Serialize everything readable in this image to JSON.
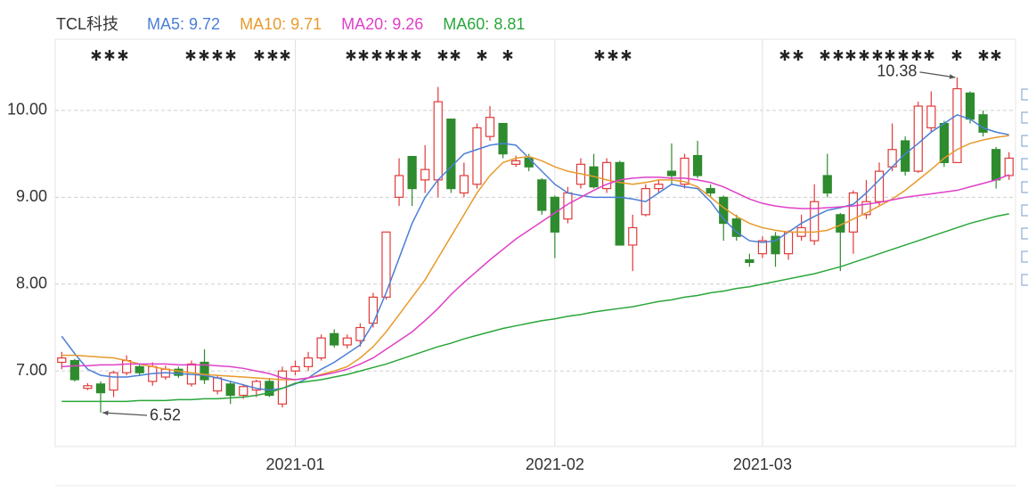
{
  "chart_data": {
    "type": "candlestick",
    "title": "TCL科技",
    "categories": [
      null,
      null,
      null,
      null,
      null,
      null,
      null,
      null,
      null,
      null,
      null,
      null,
      null,
      null,
      null,
      null,
      null,
      null,
      "2021-01",
      null,
      null,
      null,
      null,
      null,
      null,
      null,
      null,
      null,
      null,
      null,
      null,
      null,
      null,
      null,
      null,
      null,
      null,
      null,
      "2021-02",
      null,
      null,
      null,
      null,
      null,
      null,
      null,
      null,
      null,
      null,
      null,
      null,
      null,
      null,
      null,
      "2021-03",
      null,
      null,
      null,
      null,
      null,
      null,
      null,
      null,
      null,
      null,
      null,
      null,
      null,
      null,
      null,
      null,
      null,
      null,
      null
    ],
    "ohlc": {
      "open": [
        7.1,
        7.12,
        6.8,
        6.85,
        6.78,
        6.98,
        7.05,
        6.88,
        6.93,
        7.02,
        6.85,
        7.1,
        6.77,
        6.85,
        6.72,
        6.78,
        6.88,
        6.62,
        7.0,
        7.05,
        7.15,
        7.43,
        7.3,
        7.35,
        7.55,
        7.85,
        9.0,
        9.47,
        9.2,
        9.2,
        9.9,
        9.05,
        9.15,
        9.7,
        9.85,
        9.38,
        9.45,
        9.2,
        9.0,
        8.75,
        9.15,
        9.35,
        9.1,
        9.4,
        8.45,
        8.8,
        9.1,
        9.3,
        9.15,
        9.48,
        9.1,
        9.0,
        8.75,
        8.28,
        8.35,
        8.55,
        8.35,
        8.55,
        8.5,
        9.25,
        8.8,
        8.6,
        8.8,
        8.95,
        9.35,
        9.65,
        9.3,
        9.8,
        9.85,
        9.4,
        10.2,
        9.95,
        9.55,
        9.25
      ],
      "high": [
        7.22,
        7.14,
        6.86,
        6.88,
        7.0,
        7.18,
        7.08,
        7.1,
        7.06,
        7.05,
        7.12,
        7.25,
        6.95,
        6.88,
        6.85,
        6.9,
        6.92,
        7.05,
        7.12,
        7.22,
        7.42,
        7.48,
        7.42,
        7.55,
        7.9,
        8.6,
        9.45,
        9.47,
        9.6,
        10.27,
        9.9,
        9.4,
        9.85,
        10.05,
        9.85,
        9.48,
        9.5,
        9.22,
        9.02,
        9.12,
        9.45,
        9.5,
        9.45,
        9.42,
        8.8,
        9.15,
        9.2,
        9.62,
        9.5,
        9.65,
        9.15,
        9.02,
        8.8,
        8.35,
        8.55,
        8.6,
        8.62,
        8.8,
        9.15,
        9.5,
        8.82,
        9.08,
        9.2,
        9.4,
        9.85,
        9.7,
        10.1,
        10.22,
        9.88,
        10.38,
        10.22,
        10.0,
        9.58,
        9.52
      ],
      "low": [
        7.02,
        6.88,
        6.78,
        6.52,
        6.7,
        6.95,
        6.94,
        6.83,
        6.9,
        6.92,
        6.82,
        6.85,
        6.73,
        6.62,
        6.68,
        6.7,
        6.7,
        6.58,
        6.95,
        7.0,
        7.12,
        7.27,
        7.26,
        7.28,
        7.5,
        7.82,
        8.9,
        8.9,
        9.05,
        9.0,
        9.05,
        9.0,
        9.1,
        9.65,
        9.45,
        9.35,
        9.3,
        8.8,
        8.3,
        8.7,
        9.1,
        9.1,
        9.05,
        8.45,
        8.15,
        8.78,
        9.05,
        9.15,
        9.1,
        9.22,
        9.0,
        8.5,
        8.5,
        8.2,
        8.3,
        8.2,
        8.28,
        8.5,
        8.45,
        9.0,
        8.15,
        8.35,
        8.75,
        8.9,
        9.3,
        9.25,
        9.28,
        9.75,
        9.35,
        9.4,
        9.85,
        9.7,
        9.1,
        9.2
      ],
      "close": [
        7.15,
        6.9,
        6.83,
        6.75,
        6.98,
        7.12,
        6.98,
        7.05,
        7.02,
        6.95,
        7.08,
        6.9,
        6.92,
        6.72,
        6.82,
        6.88,
        6.72,
        7.0,
        7.05,
        7.15,
        7.38,
        7.3,
        7.38,
        7.5,
        7.85,
        8.6,
        9.25,
        9.1,
        9.32,
        10.1,
        9.1,
        9.25,
        9.8,
        9.92,
        9.5,
        9.42,
        9.35,
        8.85,
        8.6,
        9.05,
        9.38,
        9.12,
        9.4,
        8.45,
        8.65,
        9.1,
        9.15,
        9.25,
        9.45,
        9.25,
        9.05,
        8.7,
        8.55,
        8.25,
        8.5,
        8.35,
        8.6,
        8.65,
        8.95,
        9.05,
        8.6,
        9.05,
        8.95,
        9.3,
        9.55,
        9.3,
        10.05,
        10.05,
        9.4,
        10.25,
        9.9,
        9.75,
        9.2,
        9.45
      ]
    },
    "up_color": "#e03a3a",
    "down_color": "#2e8b2e",
    "series": [
      {
        "name": "MA5",
        "color": "#4a7fd6",
        "values": [
          7.4,
          7.2,
          7.02,
          6.95,
          6.93,
          6.93,
          6.95,
          6.97,
          6.98,
          6.97,
          6.96,
          6.95,
          6.92,
          6.88,
          6.84,
          6.8,
          6.78,
          6.8,
          6.85,
          6.92,
          7.02,
          7.1,
          7.2,
          7.3,
          7.55,
          7.9,
          8.3,
          8.7,
          9.0,
          9.2,
          9.35,
          9.5,
          9.55,
          9.6,
          9.62,
          9.6,
          9.45,
          9.3,
          9.15,
          9.05,
          9.02,
          9.0,
          9.0,
          9.0,
          8.98,
          8.95,
          9.05,
          9.15,
          9.12,
          9.1,
          8.95,
          8.75,
          8.6,
          8.5,
          8.48,
          8.5,
          8.6,
          8.7,
          8.78,
          8.85,
          8.88,
          8.92,
          9.05,
          9.2,
          9.35,
          9.5,
          9.62,
          9.75,
          9.85,
          9.95,
          9.9,
          9.8,
          9.75,
          9.72
        ]
      },
      {
        "name": "MA10",
        "color": "#e89a2c",
        "values": [
          7.18,
          7.18,
          7.17,
          7.16,
          7.15,
          7.12,
          7.08,
          7.05,
          7.02,
          7.0,
          6.98,
          6.96,
          6.95,
          6.94,
          6.93,
          6.92,
          6.91,
          6.9,
          6.9,
          6.92,
          6.96,
          7.0,
          7.05,
          7.15,
          7.28,
          7.45,
          7.65,
          7.85,
          8.05,
          8.3,
          8.55,
          8.8,
          9.05,
          9.25,
          9.4,
          9.45,
          9.47,
          9.42,
          9.35,
          9.3,
          9.27,
          9.24,
          9.2,
          9.17,
          9.15,
          9.17,
          9.2,
          9.2,
          9.18,
          9.12,
          9.0,
          8.88,
          8.78,
          8.7,
          8.65,
          8.62,
          8.6,
          8.6,
          8.6,
          8.62,
          8.68,
          8.75,
          8.82,
          8.9,
          8.98,
          9.08,
          9.2,
          9.32,
          9.45,
          9.55,
          9.62,
          9.66,
          9.69,
          9.71
        ]
      },
      {
        "name": "MA20",
        "color": "#e040c8",
        "values": [
          7.05,
          7.06,
          7.06,
          7.07,
          7.07,
          7.08,
          7.08,
          7.08,
          7.08,
          7.07,
          7.07,
          7.07,
          7.06,
          7.05,
          7.03,
          7.0,
          6.97,
          6.92,
          6.9,
          6.92,
          6.95,
          6.98,
          7.02,
          7.08,
          7.15,
          7.25,
          7.35,
          7.45,
          7.58,
          7.72,
          7.88,
          8.02,
          8.15,
          8.28,
          8.4,
          8.52,
          8.62,
          8.72,
          8.82,
          8.92,
          9.0,
          9.08,
          9.15,
          9.2,
          9.22,
          9.23,
          9.23,
          9.22,
          9.22,
          9.2,
          9.17,
          9.12,
          9.05,
          8.98,
          8.93,
          8.9,
          8.88,
          8.87,
          8.87,
          8.88,
          8.89,
          8.9,
          8.92,
          8.94,
          8.97,
          9.0,
          9.02,
          9.04,
          9.06,
          9.08,
          9.12,
          9.16,
          9.2,
          9.26
        ]
      },
      {
        "name": "MA60",
        "color": "#2aa63a",
        "values": [
          6.65,
          6.65,
          6.65,
          6.65,
          6.65,
          6.65,
          6.66,
          6.66,
          6.66,
          6.67,
          6.67,
          6.68,
          6.68,
          6.69,
          6.7,
          6.72,
          6.75,
          6.8,
          6.86,
          6.88,
          6.9,
          6.93,
          6.96,
          7.0,
          7.04,
          7.08,
          7.13,
          7.18,
          7.23,
          7.28,
          7.32,
          7.37,
          7.41,
          7.45,
          7.49,
          7.52,
          7.55,
          7.58,
          7.6,
          7.63,
          7.65,
          7.68,
          7.7,
          7.72,
          7.74,
          7.77,
          7.8,
          7.82,
          7.85,
          7.87,
          7.9,
          7.92,
          7.95,
          7.97,
          8.0,
          8.03,
          8.06,
          8.09,
          8.12,
          8.16,
          8.2,
          8.25,
          8.3,
          8.35,
          8.4,
          8.45,
          8.5,
          8.55,
          8.6,
          8.65,
          8.7,
          8.74,
          8.78,
          8.81
        ]
      }
    ],
    "ylim": [
      6.13,
      10.82
    ],
    "yticks": [
      {
        "value": 7,
        "label": "7.00"
      },
      {
        "value": 8,
        "label": "8.00"
      },
      {
        "value": 9,
        "label": "9.00"
      },
      {
        "value": 10,
        "label": "10.00"
      }
    ],
    "grid": true
  }
}
